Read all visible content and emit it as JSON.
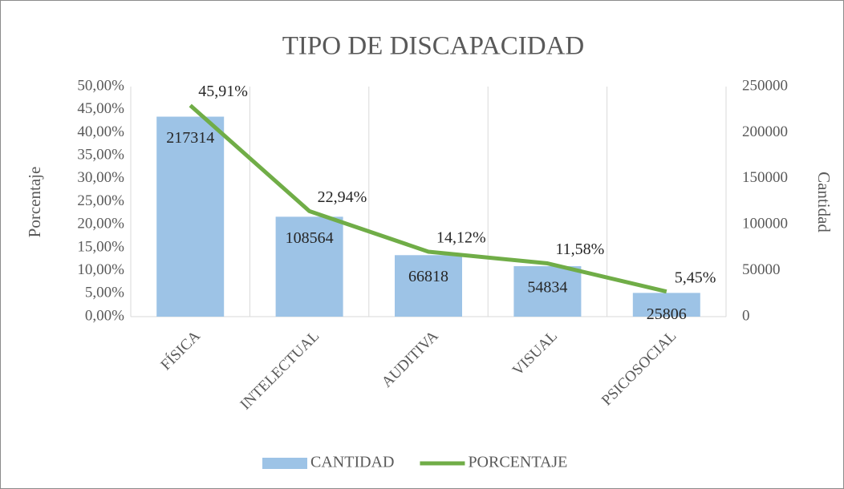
{
  "chart_data": {
    "type": "combo",
    "title": "TIPO DE DISCAPACIDAD",
    "y_label": "Porcentaje",
    "y2_label": "Cantidad",
    "categories": [
      "FÍSICA",
      "INTELECTUAL",
      "AUDITIVA",
      "VISUAL",
      "PSICOSOCIAL"
    ],
    "series": [
      {
        "name": "CANTIDAD",
        "type": "bar",
        "axis": "y2",
        "color": "#9dc3e6",
        "values": [
          217314,
          108564,
          66818,
          54834,
          25806
        ]
      },
      {
        "name": "PORCENTAJE",
        "type": "line",
        "axis": "y",
        "color": "#70ad47",
        "values": [
          45.91,
          22.94,
          14.12,
          11.58,
          5.45
        ],
        "value_labels": [
          "45,91%",
          "22,94%",
          "14,12%",
          "11,58%",
          "5,45%"
        ]
      }
    ],
    "ylim": [
      0,
      50
    ],
    "yticks": [
      {
        "value": 0,
        "label": "0,00%"
      },
      {
        "value": 5,
        "label": "5,00%"
      },
      {
        "value": 10,
        "label": "10,00%"
      },
      {
        "value": 15,
        "label": "15,00%"
      },
      {
        "value": 20,
        "label": "20,00%"
      },
      {
        "value": 25,
        "label": "25,00%"
      },
      {
        "value": 30,
        "label": "30,00%"
      },
      {
        "value": 35,
        "label": "35,00%"
      },
      {
        "value": 40,
        "label": "40,00%"
      },
      {
        "value": 45,
        "label": "45,00%"
      },
      {
        "value": 50,
        "label": "50,00%"
      }
    ],
    "y2lim": [
      0,
      250000
    ],
    "y2ticks": [
      0,
      50000,
      100000,
      150000,
      200000,
      250000
    ],
    "grid": "x",
    "legend": "bottom"
  }
}
